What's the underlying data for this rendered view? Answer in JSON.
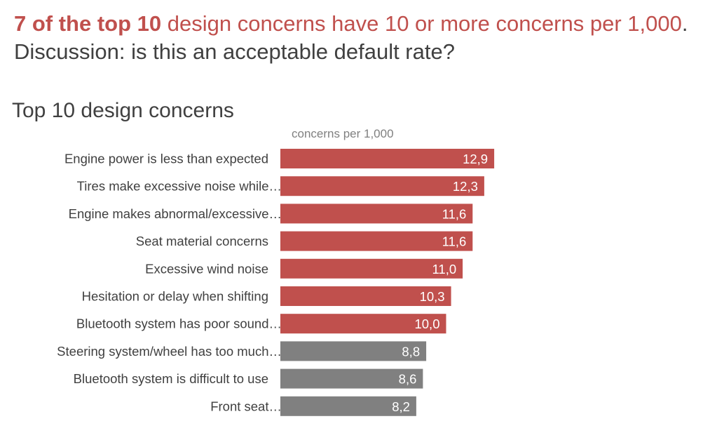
{
  "headline": {
    "part1": "7 of the top 10",
    "part2": " design concerns have 10 or more concerns per 1,000",
    "part3": ". Discussion: is this an acceptable default rate?"
  },
  "colors": {
    "highlight": "#c0504d",
    "neutral": "#808080",
    "text": "#404040",
    "value_text": "#ffffff"
  },
  "chart_data": {
    "type": "bar",
    "orientation": "horizontal",
    "title": "Top 10 design concerns",
    "xlabel": "concerns per 1,000",
    "ylabel": "",
    "xlim": [
      0,
      20
    ],
    "grid": false,
    "legend": "none",
    "categories": [
      "Engine power is less than expected",
      "Tires make excessive noise while…",
      "Engine makes abnormal/excessive…",
      "Seat material concerns",
      "Excessive wind noise",
      "Hesitation or delay when shifting",
      "Bluetooth system has poor sound…",
      "Steering system/wheel has too much…",
      "Bluetooth system is difficult to use",
      "Front seat…"
    ],
    "values": [
      12.9,
      12.3,
      11.6,
      11.6,
      11.0,
      10.3,
      10.0,
      8.8,
      8.6,
      8.2
    ],
    "value_labels": [
      "12,9",
      "12,3",
      "11,6",
      "11,6",
      "11,0",
      "10,3",
      "10,0",
      "8,8",
      "8,6",
      "8,2"
    ],
    "highlight_threshold": 10
  }
}
